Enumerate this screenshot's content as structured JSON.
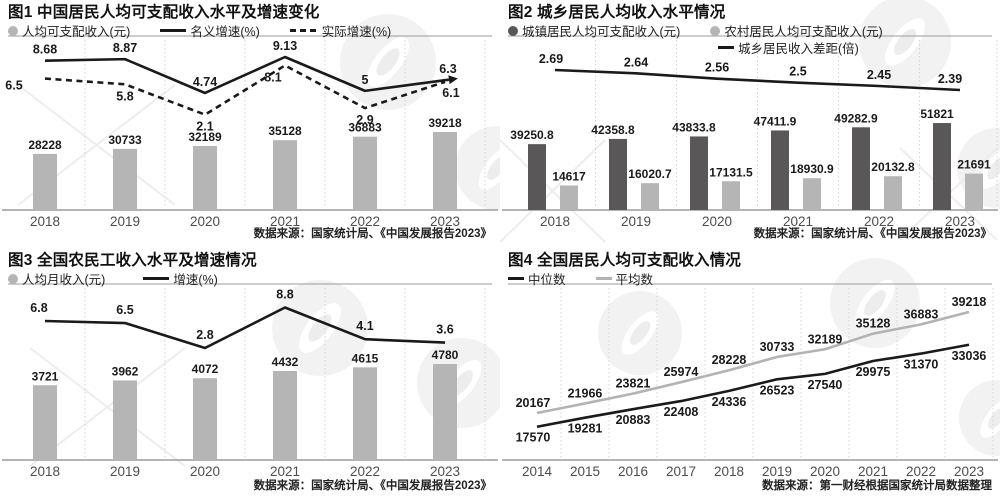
{
  "colors": {
    "bar_light": "#b5b5b6",
    "bar_dark": "#595757",
    "black": "#1a1a1a",
    "gray": "#b3b3b4",
    "axis": "#9b9b9b",
    "grid": "#d4d4d4",
    "category": "#4d4d4d",
    "watermark": "#ededed"
  },
  "chart_data": [
    {
      "type": "bar+line",
      "title": "图1 中国居民人均可支配收入水平及增速变化",
      "legend": [
        "人均可支配收入(元)",
        "名义增速(%)",
        "实际增速(%)"
      ],
      "categories": [
        "2018",
        "2019",
        "2020",
        "2021",
        "2022",
        "2023"
      ],
      "series": [
        {
          "name": "人均可支配收入(元)",
          "type": "bar",
          "values": [
            28228,
            30733,
            32189,
            35128,
            36883,
            39218
          ]
        },
        {
          "name": "名义增速(%)",
          "type": "line",
          "style": "solid",
          "values": [
            8.68,
            8.87,
            4.74,
            9.13,
            5,
            6.3
          ]
        },
        {
          "name": "实际增速(%)",
          "type": "line",
          "style": "dashed",
          "values": [
            6.5,
            5.8,
            2.1,
            8.1,
            2.9,
            6.1
          ]
        }
      ],
      "source": "数据来源：国家统计局、《中国发展报告2023》"
    },
    {
      "type": "grouped-bar+line",
      "title": "图2 城乡居民人均收入水平情况",
      "legend": [
        "城镇居民人均可支配收入(元)",
        "农村居民人均可支配收入(元)",
        "城乡居民收入差距(倍)"
      ],
      "categories": [
        "2018",
        "2019",
        "2020",
        "2021",
        "2022",
        "2023"
      ],
      "series": [
        {
          "name": "城镇居民人均可支配收入(元)",
          "type": "bar",
          "values": [
            39250.8,
            42358.8,
            43833.8,
            47411.9,
            49282.9,
            51821
          ]
        },
        {
          "name": "农村居民人均可支配收入(元)",
          "type": "bar",
          "values": [
            14617,
            16020.7,
            17131.5,
            18930.9,
            20132.8,
            21691
          ]
        },
        {
          "name": "城乡居民收入差距(倍)",
          "type": "line",
          "style": "solid",
          "values": [
            2.69,
            2.64,
            2.56,
            2.5,
            2.45,
            2.39
          ]
        }
      ],
      "source": "数据来源：国家统计局、《中国发展报告2023》"
    },
    {
      "type": "bar+line",
      "title": "图3 全国农民工收入水平及增速情况",
      "legend": [
        "人均月收入(元)",
        "增速(%)"
      ],
      "categories": [
        "2018",
        "2019",
        "2020",
        "2021",
        "2022",
        "2023"
      ],
      "series": [
        {
          "name": "人均月收入(元)",
          "type": "bar",
          "values": [
            3721,
            3962,
            4072,
            4432,
            4615,
            4780
          ]
        },
        {
          "name": "增速(%)",
          "type": "line",
          "style": "solid",
          "values": [
            6.8,
            6.5,
            2.8,
            8.8,
            4.1,
            3.6
          ]
        }
      ],
      "source": "数据来源：国家统计局、《中国发展报告2023》"
    },
    {
      "type": "line",
      "title": "图4 全国居民人均可支配收入情况",
      "legend": [
        "中位数",
        "平均数"
      ],
      "categories": [
        "2014",
        "2015",
        "2016",
        "2017",
        "2018",
        "2019",
        "2020",
        "2021",
        "2022",
        "2023"
      ],
      "series": [
        {
          "name": "中位数",
          "type": "line",
          "style": "solid",
          "values": [
            17570,
            19281,
            20883,
            22408,
            24336,
            26523,
            27540,
            29975,
            31370,
            33036
          ]
        },
        {
          "name": "平均数",
          "type": "line",
          "style": "solid",
          "values": [
            20167,
            21966,
            23821,
            25974,
            28228,
            30733,
            32189,
            35128,
            36883,
            39218
          ]
        }
      ],
      "source": "数据来源：第一财经根据国家统计局数据整理"
    }
  ]
}
